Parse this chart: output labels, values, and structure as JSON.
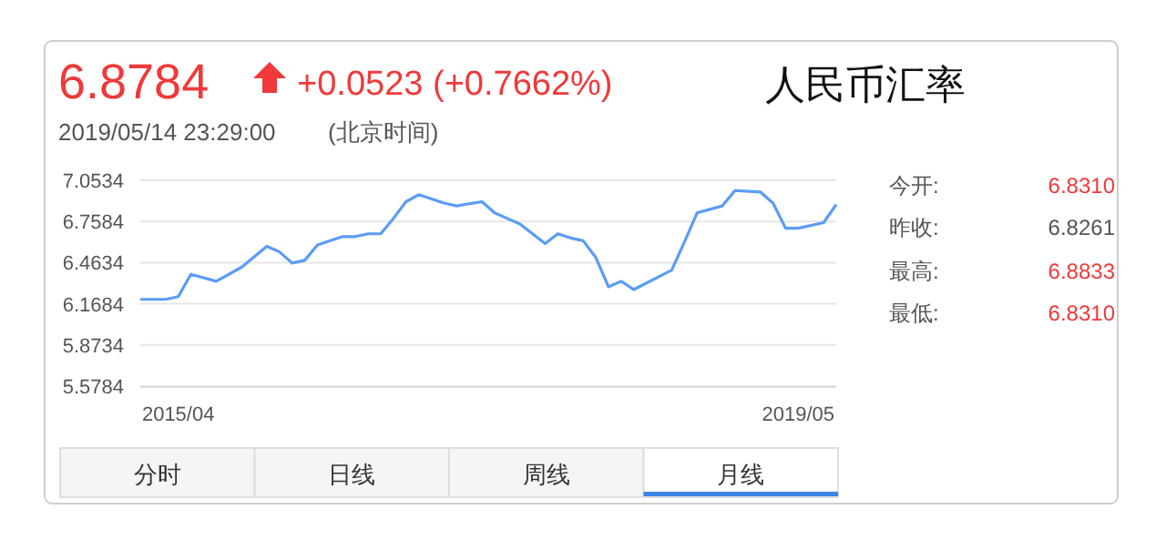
{
  "chart_data": {
    "type": "line",
    "title": "人民币汇率",
    "x": [
      "2015-01",
      "2015-03",
      "2015-04",
      "2015-05",
      "2015-07",
      "2015-09",
      "2015-11",
      "2015-12",
      "2016-01",
      "2016-02",
      "2016-03",
      "2016-05",
      "2016-06",
      "2016-07",
      "2016-08",
      "2016-09",
      "2016-10",
      "2016-11",
      "2017-01",
      "2017-02",
      "2017-04",
      "2017-05",
      "2017-06",
      "2017-07",
      "2017-09",
      "2017-10",
      "2017-11",
      "2017-12",
      "2018-01",
      "2018-02",
      "2018-03",
      "2018-04",
      "2018-07",
      "2018-08",
      "2018-09",
      "2018-11",
      "2018-12",
      "2019-02",
      "2019-03",
      "2019-04",
      "2019-05",
      "2019-07",
      "2019-08"
    ],
    "series": [
      {
        "color": "#5b9cf6",
        "values": [
          6.2,
          6.2,
          6.22,
          6.38,
          6.33,
          6.43,
          6.58,
          6.54,
          6.46,
          6.48,
          6.59,
          6.65,
          6.65,
          6.67,
          6.67,
          6.78,
          6.9,
          6.95,
          6.89,
          6.87,
          6.9,
          6.82,
          6.78,
          6.74,
          6.6,
          6.67,
          6.64,
          6.62,
          6.5,
          6.29,
          6.33,
          6.27,
          6.41,
          6.61,
          6.82,
          6.87,
          6.98,
          6.97,
          6.89,
          6.71,
          6.71,
          6.75,
          6.88
        ]
      }
    ],
    "xlim": [
      "2015-01",
      "2019-08"
    ],
    "xticks": [
      {
        "value": "2015-04",
        "label": "2015/04"
      },
      {
        "value": "2019-05",
        "label": "2019/05"
      }
    ],
    "ylim": [
      5.5784,
      7.0534
    ],
    "yticks": [
      5.5784,
      5.8734,
      6.1684,
      6.4634,
      6.7584,
      7.0534
    ],
    "grid": "y",
    "marker": "none",
    "line_style": "solid",
    "annotations": [
      "6.8784",
      "+0.0523 (+0.7662%)",
      "2019/05/14 23:29:00",
      "(北京时间)",
      "今开:",
      "6.8310",
      "昨收:",
      "6.8261",
      "最高:",
      "6.8833",
      "最低:",
      "6.8310",
      "分时",
      "日线",
      "周线",
      "月线"
    ]
  }
}
